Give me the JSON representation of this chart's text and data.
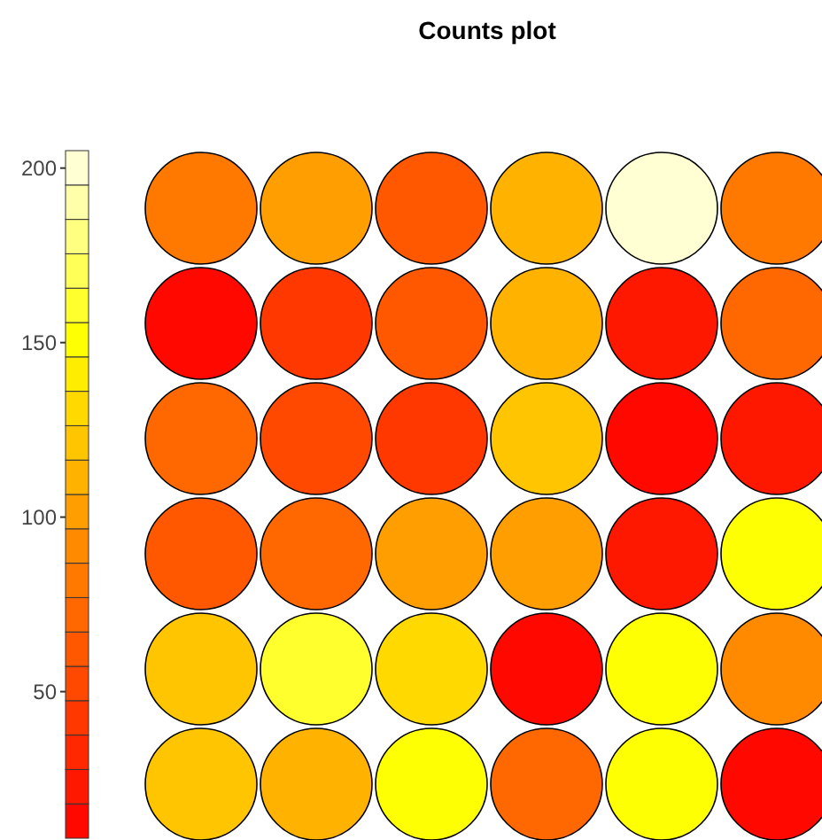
{
  "chart_data": {
    "type": "heatmap",
    "title": "Counts plot",
    "categories": [
      null,
      null,
      null,
      null,
      null,
      null
    ],
    "y_categories": [
      null,
      null,
      null,
      null,
      null,
      null
    ],
    "cells": [
      [
        85,
        105,
        65,
        115,
        205,
        85
      ],
      [
        10,
        45,
        65,
        115,
        25,
        75
      ],
      [
        75,
        55,
        40,
        125,
        12,
        25
      ],
      [
        65,
        75,
        105,
        100,
        25,
        155
      ],
      [
        125,
        165,
        135,
        10,
        155,
        95
      ],
      [
        125,
        115,
        150,
        75,
        155,
        10
      ]
    ],
    "clim": [
      8,
      205
    ],
    "cticks": [
      50,
      100,
      150,
      200
    ]
  }
}
